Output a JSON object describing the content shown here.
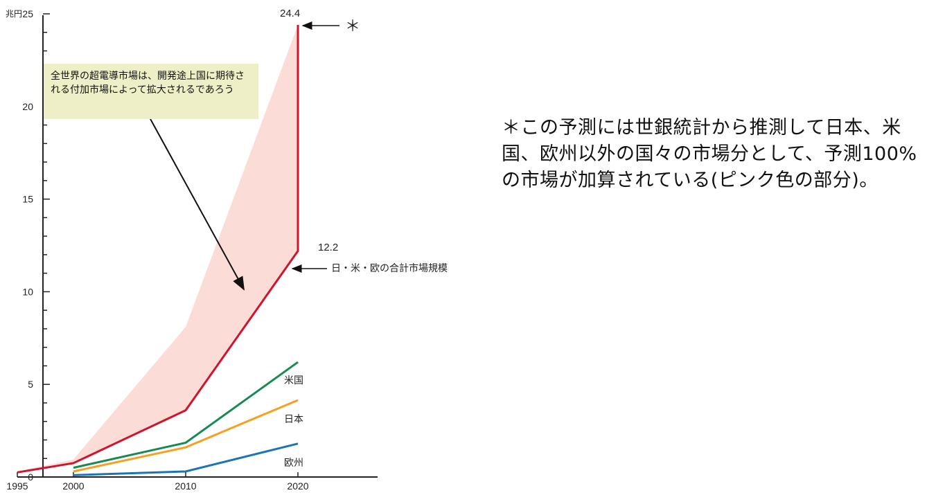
{
  "chart_data": {
    "type": "line",
    "x": [
      1995,
      2000,
      2010,
      2020
    ],
    "x_ticks": [
      "1995",
      "2000",
      "2010",
      "2020"
    ],
    "y_unit": "兆円",
    "y_ticks": [
      "0",
      "5",
      "10",
      "15",
      "20",
      "25"
    ],
    "ylim": [
      0,
      25
    ],
    "series": [
      {
        "name": "日・米・欧の合計市場規模",
        "x": [
          1995,
          2000,
          2010,
          2020
        ],
        "values": [
          0.25,
          0.75,
          3.6,
          12.2
        ],
        "color": "#d0142c"
      },
      {
        "name": "米国",
        "x": [
          2000,
          2010,
          2020
        ],
        "values": [
          0.5,
          1.85,
          6.2
        ],
        "color": "#178a52"
      },
      {
        "name": "日本",
        "x": [
          2000,
          2010,
          2020
        ],
        "values": [
          0.3,
          1.6,
          4.15
        ],
        "color": "#f5a01e"
      },
      {
        "name": "欧州",
        "x": [
          2000,
          2010,
          2020
        ],
        "values": [
          0.1,
          0.3,
          1.8
        ],
        "color": "#1a76b0"
      }
    ],
    "area": {
      "color": "#fbdcd6",
      "x": [
        1995,
        2000,
        2010,
        2020
      ],
      "upper": [
        0.3,
        0.95,
        8.1,
        24.4
      ],
      "lower": [
        0.25,
        0.75,
        3.6,
        12.2
      ]
    },
    "jump_to": 24.4,
    "value_labels": [
      "24.4",
      "12.2"
    ],
    "arrow_labels": {
      "star": "＊",
      "total": "日・米・欧の合計市場規模"
    },
    "annotation": "全世界の超電導市場は、開発途上国に期待される付加市場によって拡大されるであろう"
  },
  "note": "＊この予測には世銀統計から推測して日本、米国、欧州以外の国々の市場分として、予測100%の市場が加算されている(ピンク色の部分)。"
}
